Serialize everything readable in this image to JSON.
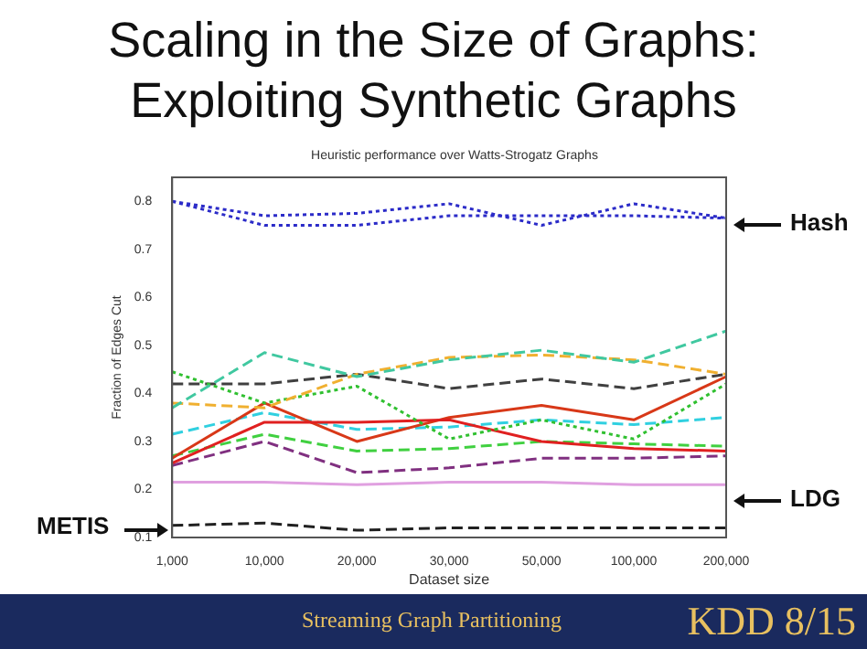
{
  "chart_data": {
    "type": "line",
    "title": "Scaling in the Size of Graphs: Exploiting Synthetic Graphs",
    "subtitle": "Heuristic performance over Watts-Strogatz Graphs",
    "xlabel": "Dataset size",
    "ylabel": "Fraction of Edges Cut",
    "categories": [
      "1,000",
      "10,000",
      "20,000",
      "30,000",
      "50,000",
      "100,000",
      "200,000"
    ],
    "ylim": [
      0.1,
      0.85
    ],
    "yticks": [
      0.1,
      0.2,
      0.3,
      0.4,
      0.5,
      0.6,
      0.7,
      0.8
    ],
    "grid": false,
    "legend": false,
    "marker": "none",
    "series": [
      {
        "color": "#2b2bc8",
        "line_style": "dotted",
        "values": [
          0.8,
          0.77,
          0.775,
          0.795,
          0.75,
          0.795,
          0.765
        ]
      },
      {
        "color": "#2b2bc8",
        "line_style": "dotted",
        "values": [
          0.8,
          0.75,
          0.75,
          0.77,
          0.77,
          0.77,
          0.765
        ]
      },
      {
        "color": "#40c8a0",
        "line_style": "dashed",
        "values": [
          0.37,
          0.485,
          0.435,
          0.47,
          0.49,
          0.465,
          0.53
        ]
      },
      {
        "color": "#f0b030",
        "line_style": "dashed",
        "values": [
          0.38,
          0.37,
          0.44,
          0.475,
          0.48,
          0.47,
          0.44
        ]
      },
      {
        "color": "#30c030",
        "line_style": "dotted",
        "values": [
          0.445,
          0.38,
          0.415,
          0.305,
          0.345,
          0.305,
          0.42
        ]
      },
      {
        "color": "#404040",
        "line_style": "dashed",
        "values": [
          0.42,
          0.42,
          0.44,
          0.41,
          0.43,
          0.41,
          0.44
        ]
      },
      {
        "color": "#e02020",
        "line_style": "solid",
        "values": [
          0.255,
          0.34,
          0.34,
          0.345,
          0.3,
          0.285,
          0.28
        ]
      },
      {
        "color": "#d83818",
        "line_style": "solid",
        "values": [
          0.265,
          0.38,
          0.3,
          0.35,
          0.375,
          0.345,
          0.435
        ]
      },
      {
        "color": "#30d0e0",
        "line_style": "dashed",
        "values": [
          0.315,
          0.36,
          0.325,
          0.33,
          0.345,
          0.335,
          0.35
        ]
      },
      {
        "color": "#40d040",
        "line_style": "dashed",
        "values": [
          0.27,
          0.315,
          0.28,
          0.285,
          0.3,
          0.295,
          0.29
        ]
      },
      {
        "color": "#803080",
        "line_style": "dashed",
        "values": [
          0.25,
          0.3,
          0.235,
          0.245,
          0.265,
          0.265,
          0.27
        ]
      },
      {
        "color": "#e0a0e0",
        "line_style": "solid",
        "values": [
          0.215,
          0.215,
          0.21,
          0.215,
          0.215,
          0.21,
          0.21
        ]
      },
      {
        "color": "#202020",
        "line_style": "dashed",
        "values": [
          0.125,
          0.13,
          0.115,
          0.12,
          0.12,
          0.12,
          0.12
        ]
      }
    ],
    "annotations": [
      "Hash",
      "LDG",
      "METIS",
      "Streaming Graph Partitioning",
      "KDD 8/15"
    ]
  }
}
